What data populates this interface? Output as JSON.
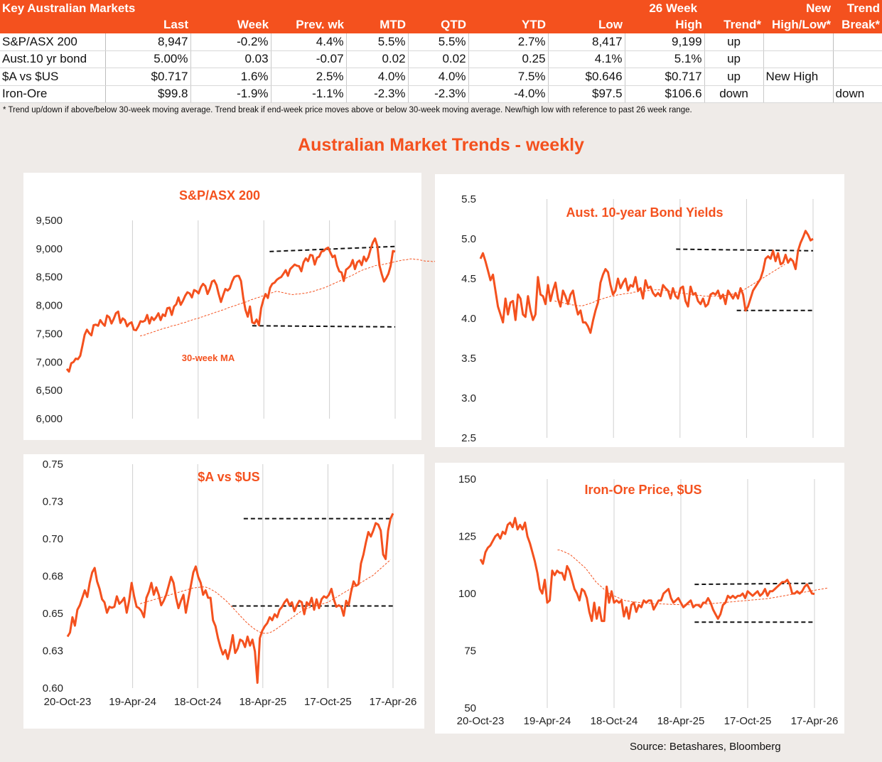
{
  "table": {
    "title": "Key Australian Markets",
    "group_header": "26 Week",
    "header_top_new": "New",
    "header_top_trend": "Trend",
    "columns": [
      "Last",
      "Week",
      "Prev. wk",
      "MTD",
      "QTD",
      "YTD",
      "Low",
      "High",
      "Trend*",
      "High/Low*",
      "Break*"
    ],
    "rows": [
      {
        "name": "S&P/ASX 200",
        "cells": [
          "8,947",
          "-0.2%",
          "4.4%",
          "5.5%",
          "5.5%",
          "2.7%",
          "8,417",
          "9,199",
          "up",
          "",
          ""
        ]
      },
      {
        "name": "Aust.10 yr bond",
        "cells": [
          "5.00%",
          "0.03",
          "-0.07",
          "0.02",
          "0.02",
          "0.25",
          "4.1%",
          "5.1%",
          "up",
          "",
          ""
        ]
      },
      {
        "name": "$A vs $US",
        "cells": [
          "$0.717",
          "1.6%",
          "2.5%",
          "4.0%",
          "4.0%",
          "7.5%",
          "$0.646",
          "$0.717",
          "up",
          "New High",
          ""
        ]
      },
      {
        "name": "Iron-Ore",
        "cells": [
          "$99.8",
          "-1.9%",
          "-1.1%",
          "-2.3%",
          "-2.3%",
          "-4.0%",
          "$97.5",
          "$106.6",
          "down",
          "",
          "down"
        ]
      }
    ]
  },
  "footnote": "*  Trend up/down if above/below 30-week moving average. Trend break if end-week price moves above or below 30-week moving average.  New/high low with reference to past 26 week range.",
  "main_title": "Australian Market Trends - weekly",
  "source": "Source:  Betashares, Bloomberg",
  "colors": {
    "accent": "#f4511e",
    "reference_lines": "#111111",
    "grid": "#d0d0d0"
  },
  "x_tick_labels": [
    "20-Oct-23",
    "19-Apr-24",
    "18-Oct-24",
    "18-Apr-25",
    "17-Oct-25",
    "17-Apr-26"
  ],
  "chart_data": [
    {
      "id": "asx",
      "type": "line",
      "title": "S&P/ASX 200",
      "annotation": "30-week MA",
      "show_x_labels": false,
      "ylim": [
        6000,
        9500
      ],
      "yticks": [
        "6,000",
        "6,500",
        "7,000",
        "7,500",
        "8,000",
        "8,500",
        "9,000",
        "9,500"
      ],
      "series_values": [
        6880,
        6830,
        6980,
        7000,
        7060,
        7050,
        7110,
        7290,
        7480,
        7570,
        7510,
        7470,
        7650,
        7660,
        7640,
        7740,
        7680,
        7640,
        7820,
        7790,
        7680,
        7760,
        7860,
        7890,
        7690,
        7770,
        7740,
        7630,
        7680,
        7700,
        7570,
        7560,
        7630,
        7720,
        7710,
        7730,
        7830,
        7680,
        7790,
        7740,
        7790,
        7860,
        7740,
        7840,
        7810,
        7950,
        7960,
        7830,
        7980,
        8020,
        8140,
        8010,
        8080,
        8170,
        8230,
        8210,
        8140,
        8270,
        8250,
        8210,
        8320,
        8380,
        8340,
        8200,
        8290,
        8420,
        8440,
        8360,
        8200,
        8060,
        8180,
        8290,
        8260,
        8300,
        8420,
        8500,
        8520,
        8520,
        8430,
        8130,
        7920,
        7800,
        7980,
        7700,
        7680,
        7750,
        7650,
        7950,
        8100,
        8200,
        8130,
        8310,
        8380,
        8400,
        8450,
        8480,
        8500,
        8560,
        8620,
        8520,
        8640,
        8680,
        8720,
        8700,
        8690,
        8600,
        8760,
        8830,
        8780,
        8890,
        8880,
        8720,
        8840,
        8860,
        8950,
        8960,
        9000,
        9020,
        8930,
        8850,
        8880,
        8700,
        8600,
        8580,
        8430,
        8630,
        8660,
        8700,
        8800,
        8640,
        8760,
        8790,
        8710,
        8860,
        8780,
        8850,
        8990,
        9110,
        9180,
        9050,
        8700,
        8550,
        8420,
        8480,
        8560,
        8700,
        8960,
        8947
      ],
      "ma_start": 29,
      "ma_values": [
        7460,
        7470,
        7480,
        7500,
        7510,
        7530,
        7540,
        7560,
        7570,
        7590,
        7600,
        7610,
        7630,
        7640,
        7650,
        7660,
        7680,
        7690,
        7700,
        7720,
        7730,
        7750,
        7760,
        7770,
        7790,
        7800,
        7820,
        7830,
        7850,
        7860,
        7880,
        7890,
        7910,
        7920,
        7940,
        7960,
        7970,
        7990,
        8000,
        8020,
        8030,
        8050,
        8060,
        8080,
        8100,
        8110,
        8130,
        8140,
        8160,
        8170,
        8190,
        8200,
        8220,
        8230,
        8250,
        8240,
        8230,
        8220,
        8210,
        8200,
        8190,
        8190,
        8200,
        8200,
        8210,
        8210,
        8220,
        8230,
        8240,
        8250,
        8270,
        8280,
        8300,
        8310,
        8330,
        8350,
        8370,
        8390,
        8410,
        8430,
        8450,
        8470,
        8490,
        8510,
        8530,
        8550,
        8580,
        8600,
        8620,
        8640,
        8650,
        8670,
        8680,
        8700,
        8710,
        8710,
        8720,
        8730,
        8740,
        8750,
        8760,
        8770,
        8780,
        8790,
        8800,
        8800,
        8810,
        8820,
        8820,
        8810,
        8810,
        8800,
        8790,
        8780,
        8780,
        8780,
        8770,
        8780
      ],
      "ref_lines": [
        [
          210,
          8950,
          340,
          9040
        ],
        [
          192,
          7640,
          340,
          7620
        ]
      ]
    },
    {
      "id": "bond",
      "type": "line",
      "title": "Aust. 10-year Bond Yields",
      "show_x_labels": false,
      "ylim": [
        2.5,
        5.5
      ],
      "yticks": [
        "2.5",
        "3.0",
        "3.5",
        "4.0",
        "4.5",
        "5.0",
        "5.5"
      ],
      "series_values": [
        4.75,
        4.82,
        4.72,
        4.6,
        4.48,
        4.55,
        4.35,
        4.15,
        4.05,
        3.95,
        4.25,
        4.05,
        4.2,
        4.22,
        3.98,
        4.3,
        4.25,
        4.05,
        4.02,
        4.28,
        4.1,
        3.98,
        4.05,
        4.52,
        4.3,
        4.28,
        4.18,
        4.42,
        4.22,
        4.35,
        4.45,
        4.25,
        4.15,
        4.35,
        4.28,
        4.18,
        4.3,
        4.35,
        4.18,
        4.05,
        4.1,
        3.95,
        3.95,
        3.9,
        3.82,
        3.97,
        4.1,
        4.2,
        4.45,
        4.55,
        4.62,
        4.58,
        4.42,
        4.3,
        4.35,
        4.5,
        4.38,
        4.45,
        4.5,
        4.35,
        4.42,
        4.4,
        4.52,
        4.35,
        4.38,
        4.25,
        4.48,
        4.38,
        4.4,
        4.32,
        4.28,
        4.32,
        4.28,
        4.42,
        4.38,
        4.35,
        4.25,
        4.38,
        4.28,
        4.25,
        4.38,
        4.4,
        4.22,
        4.15,
        4.4,
        4.3,
        4.32,
        4.22,
        4.18,
        4.25,
        4.15,
        4.18,
        4.3,
        4.32,
        4.3,
        4.35,
        4.25,
        4.3,
        4.18,
        4.35,
        4.3,
        4.25,
        4.32,
        4.25,
        4.38,
        4.3,
        4.1,
        4.15,
        4.25,
        4.35,
        4.4,
        4.45,
        4.5,
        4.6,
        4.75,
        4.78,
        4.75,
        4.85,
        4.72,
        4.82,
        4.68,
        4.7,
        4.8,
        4.7,
        4.75,
        4.72,
        4.62,
        4.85,
        4.95,
        5.02,
        5.1,
        5.05,
        4.98,
        5.0
      ],
      "ma_start": 29,
      "ma_values": [
        4.22,
        4.21,
        4.2,
        4.2,
        4.19,
        4.18,
        4.18,
        4.17,
        4.17,
        4.16,
        4.16,
        4.16,
        4.17,
        4.18,
        4.19,
        4.2,
        4.22,
        4.23,
        4.24,
        4.25,
        4.26,
        4.27,
        4.28,
        4.28,
        4.29,
        4.3,
        4.3,
        4.31,
        4.31,
        4.32,
        4.32,
        4.33,
        4.33,
        4.34,
        4.34,
        4.34,
        4.35,
        4.35,
        4.35,
        4.36,
        4.36,
        4.36,
        4.36,
        4.35,
        4.35,
        4.34,
        4.34,
        4.33,
        4.33,
        4.32,
        4.32,
        4.31,
        4.31,
        4.3,
        4.3,
        4.29,
        4.29,
        4.29,
        4.28,
        4.28,
        4.28,
        4.28,
        4.28,
        4.28,
        4.28,
        4.29,
        4.29,
        4.29,
        4.3,
        4.3,
        4.31,
        4.32,
        4.33,
        4.34,
        4.36,
        4.38,
        4.4,
        4.42,
        4.44,
        4.46,
        4.48,
        4.5,
        4.52,
        4.54,
        4.56,
        4.58,
        4.6,
        4.62,
        4.64,
        4.66,
        4.68
      ],
      "ref_lines": [
        [
          200,
          4.87,
          340,
          4.85
        ],
        [
          262,
          4.1,
          340,
          4.1
        ]
      ]
    },
    {
      "id": "aud",
      "type": "line",
      "title": "$A vs $US",
      "show_x_labels": true,
      "ylim": [
        0.6,
        0.75
      ],
      "yticks": [
        "0.60",
        "0.63",
        "0.65",
        "0.68",
        "0.70",
        "0.73",
        "0.75"
      ],
      "series_values": [
        0.6345,
        0.6372,
        0.6475,
        0.6418,
        0.6525,
        0.6555,
        0.6605,
        0.6655,
        0.661,
        0.6705,
        0.6775,
        0.6805,
        0.6715,
        0.6665,
        0.6595,
        0.6575,
        0.6505,
        0.6545,
        0.6538,
        0.6545,
        0.6615,
        0.6565,
        0.658,
        0.6605,
        0.6505,
        0.6585,
        0.6705,
        0.6615,
        0.6545,
        0.6535,
        0.6515,
        0.6475,
        0.6605,
        0.6645,
        0.6705,
        0.6625,
        0.6675,
        0.6625,
        0.6555,
        0.6585,
        0.6625,
        0.6685,
        0.6745,
        0.6705,
        0.6605,
        0.6535,
        0.6585,
        0.6625,
        0.6505,
        0.6595,
        0.6685,
        0.6775,
        0.6815,
        0.6745,
        0.6705,
        0.6625,
        0.6655,
        0.6605,
        0.6605,
        0.6455,
        0.6415,
        0.6335,
        0.6275,
        0.6225,
        0.6255,
        0.6195,
        0.6265,
        0.6355,
        0.6235,
        0.6265,
        0.6325,
        0.6315,
        0.6275,
        0.6345,
        0.6285,
        0.6325,
        0.6245,
        0.6035,
        0.6335,
        0.6385,
        0.6415,
        0.6435,
        0.6475,
        0.6455,
        0.6495,
        0.6475,
        0.6525,
        0.6545,
        0.6575,
        0.6595,
        0.6555,
        0.6575,
        0.6515,
        0.6555,
        0.6585,
        0.6575,
        0.6495,
        0.6575,
        0.6555,
        0.6605,
        0.6525,
        0.6595,
        0.6535,
        0.6595,
        0.6615,
        0.6605,
        0.6625,
        0.6665,
        0.6595,
        0.6545,
        0.6555,
        0.6545,
        0.6485,
        0.6585,
        0.6555,
        0.6645,
        0.6715,
        0.6685,
        0.6695,
        0.6835,
        0.6895,
        0.6975,
        0.7045,
        0.7015,
        0.7055,
        0.7105,
        0.7095,
        0.7055,
        0.6895,
        0.6865,
        0.7055,
        0.7135,
        0.717
      ],
      "ma_start": 29,
      "ma_values": [
        0.6565,
        0.657,
        0.6575,
        0.658,
        0.6585,
        0.659,
        0.6595,
        0.66,
        0.6605,
        0.661,
        0.6615,
        0.662,
        0.6625,
        0.663,
        0.6635,
        0.664,
        0.6645,
        0.665,
        0.6655,
        0.666,
        0.6665,
        0.667,
        0.6672,
        0.6674,
        0.6676,
        0.6678,
        0.6677,
        0.6672,
        0.6664,
        0.6655,
        0.6645,
        0.6632,
        0.6618,
        0.6604,
        0.659,
        0.6574,
        0.6556,
        0.6538,
        0.652,
        0.6502,
        0.6484,
        0.6466,
        0.6448,
        0.6432,
        0.6418,
        0.6404,
        0.6392,
        0.6382,
        0.6374,
        0.6368,
        0.6366,
        0.6368,
        0.6373,
        0.6381,
        0.6391,
        0.6403,
        0.6415,
        0.6427,
        0.6439,
        0.6451,
        0.6463,
        0.6475,
        0.6487,
        0.6499,
        0.6511,
        0.6521,
        0.6529,
        0.6535,
        0.6541,
        0.6547,
        0.6551,
        0.6555,
        0.656,
        0.6565,
        0.657,
        0.6575,
        0.6585,
        0.6595,
        0.6605,
        0.6615,
        0.6625,
        0.6635,
        0.6645,
        0.6655,
        0.6665,
        0.6675,
        0.6685,
        0.6695,
        0.6705,
        0.6715,
        0.6725,
        0.6735,
        0.6745,
        0.6755,
        0.677,
        0.6785,
        0.68,
        0.6815,
        0.683,
        0.6845,
        0.686
      ],
      "ref_lines": [
        [
          184,
          0.7135,
          340,
          0.7135
        ],
        [
          172,
          0.655,
          340,
          0.655
        ]
      ]
    },
    {
      "id": "iron",
      "type": "line",
      "title": "Iron-Ore Price, $US",
      "show_x_labels": true,
      "ylim": [
        50,
        150
      ],
      "yticks": [
        "50",
        "75",
        "100",
        "125",
        "150"
      ],
      "series_values": [
        115,
        113,
        118,
        120,
        121,
        123,
        125,
        126,
        124,
        127,
        126,
        130,
        131,
        129,
        133,
        128,
        130,
        128,
        131,
        125,
        122,
        118,
        114,
        109,
        102,
        100,
        106,
        96,
        97,
        110,
        108,
        110,
        109,
        109,
        106,
        112,
        110,
        106,
        102,
        100,
        97,
        102,
        101,
        98,
        92,
        88,
        96,
        89,
        94,
        88,
        88,
        103,
        96,
        101,
        96,
        97,
        96,
        97,
        90,
        94,
        89,
        95,
        96,
        92,
        95,
        94,
        97,
        96,
        97,
        97,
        93,
        95,
        97,
        97,
        100,
        101,
        102,
        98,
        96,
        97,
        98,
        96,
        94,
        95,
        96,
        97,
        94,
        95,
        95,
        94,
        96,
        96,
        98,
        96,
        93,
        91,
        89,
        91,
        95,
        96,
        99,
        98,
        99,
        98,
        99,
        99,
        100,
        98,
        101,
        100,
        99,
        100,
        101,
        99,
        100,
        102,
        99,
        101,
        101,
        102,
        103,
        104,
        105,
        105,
        106,
        104,
        100,
        100,
        101,
        100,
        101,
        103,
        104,
        102,
        100,
        99.8
      ],
      "ma_start": 30,
      "ma_values": [
        119,
        119,
        118.5,
        118,
        117.5,
        117,
        116,
        115,
        114,
        113,
        112,
        111,
        109.5,
        108,
        106.5,
        105,
        104,
        103,
        102,
        101,
        100,
        99.5,
        99,
        98.5,
        98,
        97.5,
        97,
        96.8,
        96.6,
        96.4,
        96.3,
        96.2,
        96.1,
        96,
        95.9,
        95.8,
        95.7,
        95.6,
        95.5,
        95.5,
        95.5,
        95.4,
        95.4,
        95.3,
        95.3,
        95.2,
        95.2,
        95.2,
        95.1,
        95.1,
        95.1,
        95.1,
        95.1,
        95.2,
        95.2,
        95.3,
        95.3,
        95.4,
        95.4,
        95.5,
        95.6,
        95.7,
        95.8,
        95.9,
        96,
        96.1,
        96.2,
        96.3,
        96.4,
        96.5,
        96.6,
        96.7,
        96.8,
        96.9,
        97,
        97.1,
        97.2,
        97.3,
        97.4,
        97.5,
        97.6,
        97.7,
        97.8,
        98,
        98.2,
        98.4,
        98.6,
        98.8,
        99,
        99.2,
        99.4,
        99.6,
        99.8,
        100,
        100.2,
        100.4,
        100.6,
        100.8,
        101,
        101.2,
        101.4,
        101.6,
        101.8,
        102,
        102.2,
        102.4
      ],
      "ref_lines": [
        [
          218,
          104,
          340,
          104.5
        ],
        [
          218,
          87.5,
          340,
          87.5
        ]
      ]
    }
  ]
}
